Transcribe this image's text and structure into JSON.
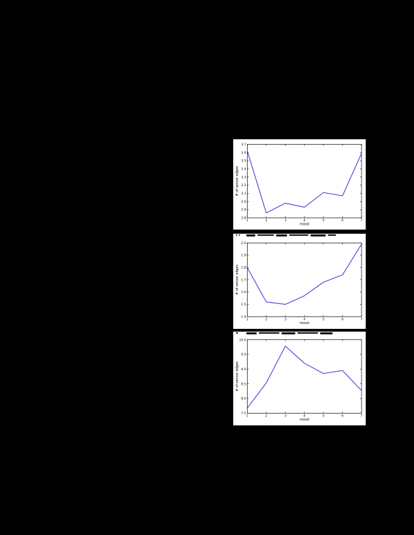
{
  "page": {
    "background_color": "#000000",
    "panel_color": "#ffffff",
    "accent_line_color": "#4343d9"
  },
  "chart_data": [
    {
      "type": "line",
      "x": [
        1,
        2,
        3,
        4,
        5,
        6,
        7
      ],
      "values": [
        3.62,
        2.86,
        2.98,
        2.93,
        3.11,
        3.07,
        3.59
      ],
      "xlabel": "mood",
      "ylabel": "# of sensor edges",
      "xlim": [
        1,
        7
      ],
      "ylim": [
        2.8,
        3.7
      ],
      "xticks": [
        "1",
        "2",
        "3",
        "4",
        "5",
        "6",
        "7"
      ],
      "yticks": [
        "2.8",
        "2.9",
        "3.0",
        "3.1",
        "3.2",
        "3.3",
        "3.4",
        "3.5",
        "3.6",
        "3.7"
      ],
      "grid": false,
      "legend": "none",
      "line_color": "#4343d9"
    },
    {
      "type": "line",
      "x": [
        1,
        2,
        3,
        4,
        5,
        6,
        7
      ],
      "values": [
        1.8,
        1.52,
        1.5,
        1.57,
        1.68,
        1.74,
        1.99
      ],
      "xlabel": "mood",
      "ylabel": "# of sensor edges",
      "xlim": [
        1,
        7
      ],
      "ylim": [
        1.4,
        2.0
      ],
      "xticks": [
        "1",
        "2",
        "3",
        "4",
        "5",
        "6",
        "7"
      ],
      "yticks": [
        "1.4",
        "1.5",
        "1.6",
        "1.7",
        "1.8",
        "1.9",
        "2.0"
      ],
      "grid": false,
      "legend": "none",
      "line_color": "#4343d9"
    },
    {
      "type": "line",
      "x": [
        1,
        2,
        3,
        4,
        5,
        6,
        7
      ],
      "values": [
        7.67,
        8.53,
        9.78,
        9.2,
        8.85,
        8.95,
        8.27
      ],
      "xlabel": "mood",
      "ylabel": "# of sensor edges",
      "xlim": [
        1,
        7
      ],
      "ylim": [
        7.5,
        10.0
      ],
      "xticks": [
        "1",
        "2",
        "3",
        "4",
        "5",
        "6",
        "7"
      ],
      "yticks": [
        "7.5",
        "8.0",
        "8.5",
        "9.0",
        "9.5",
        "10.0"
      ],
      "grid": false,
      "legend": "none",
      "line_color": "#4343d9"
    }
  ]
}
